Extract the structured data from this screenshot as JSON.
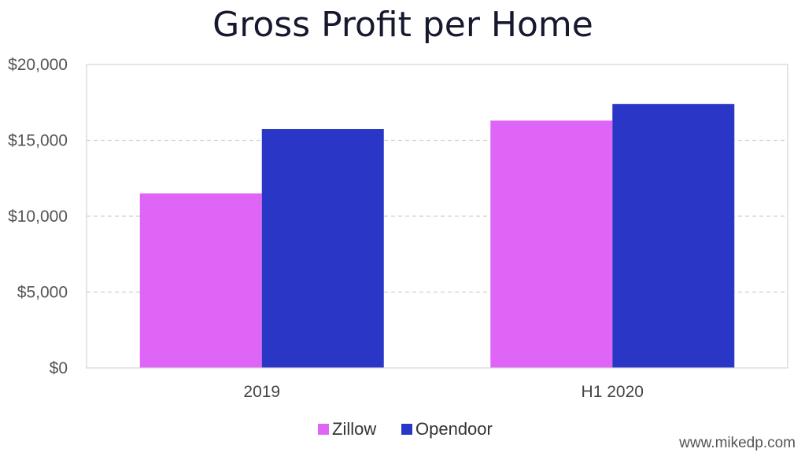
{
  "chart_data": {
    "type": "bar",
    "title": "Gross Profit per Home",
    "xlabel": "",
    "ylabel": "",
    "categories": [
      "2019",
      "H1 2020"
    ],
    "series": [
      {
        "name": "Zillow",
        "values": [
          11500,
          16300
        ],
        "color": "#df65f7"
      },
      {
        "name": "Opendoor",
        "values": [
          15750,
          17400
        ],
        "color": "#2a37c6"
      }
    ],
    "ylim": [
      0,
      20000
    ],
    "yticks": [
      0,
      5000,
      10000,
      15000,
      20000
    ],
    "ytick_labels": [
      "$0",
      "$5,000",
      "$10,000",
      "$15,000",
      "$20,000"
    ],
    "grid": true,
    "grid_style": "dashed",
    "legend_position": "bottom-center"
  },
  "credit": "www.mikedp.com"
}
